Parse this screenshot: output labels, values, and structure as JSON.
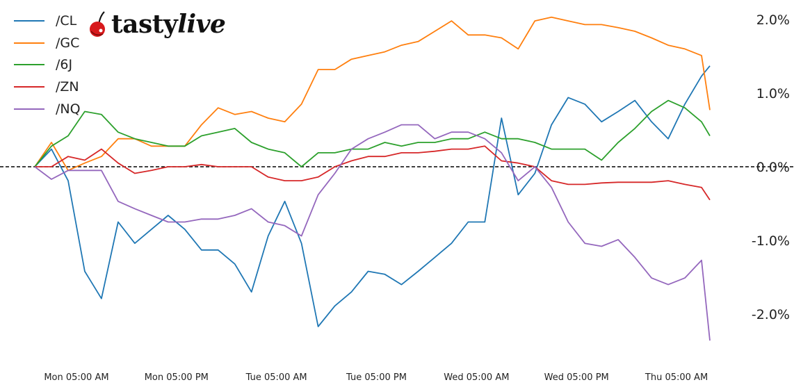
{
  "logo": {
    "text_main": "tasty",
    "text_italic": "live",
    "icon": "cherry-icon"
  },
  "chart_data": {
    "type": "line",
    "title": "",
    "xlabel": "",
    "ylabel": "",
    "x": [
      "Mon 00:00",
      "Mon 02:00",
      "Mon 04:00",
      "Mon 06:00",
      "Mon 08:00",
      "Mon 10:00",
      "Mon 12:00",
      "Mon 14:00",
      "Mon 16:00",
      "Mon 18:00",
      "Mon 20:00",
      "Mon 22:00",
      "Tue 00:00",
      "Tue 02:00",
      "Tue 04:00",
      "Tue 06:00",
      "Tue 08:00",
      "Tue 10:00",
      "Tue 12:00",
      "Tue 14:00",
      "Tue 16:00",
      "Tue 18:00",
      "Tue 20:00",
      "Tue 22:00",
      "Wed 00:00",
      "Wed 02:00",
      "Wed 04:00",
      "Wed 06:00",
      "Wed 08:00",
      "Wed 10:00",
      "Wed 12:00",
      "Wed 14:00",
      "Wed 16:00",
      "Wed 18:00",
      "Wed 20:00",
      "Wed 22:00",
      "Thu 00:00",
      "Thu 02:00",
      "Thu 04:00",
      "Thu 06:00",
      "Thu 08:00",
      "Thu 09:00"
    ],
    "x_range": [
      "Mon 00:00",
      "Thu 09:00"
    ],
    "x_ticks": [
      "Mon 05:00",
      "Mon 17:00",
      "Tue 05:00",
      "Tue 17:00",
      "Wed 05:00",
      "Wed 17:00",
      "Thu 05:00"
    ],
    "x_tick_labels": [
      "Mon 05:00 AM",
      "Mon 05:00 PM",
      "Tue 05:00 AM",
      "Tue 05:00 PM",
      "Wed 05:00 AM",
      "Wed 05:00 PM",
      "Thu 05:00 AM"
    ],
    "y_unit": "%",
    "y_ticks": [
      2.0,
      1.0,
      0.0,
      -1.0,
      -2.0
    ],
    "y_tick_labels": [
      "2.0%",
      "1.0%",
      "0.0%",
      "-1.0%",
      "-2.0%"
    ],
    "y_axis_side": "right",
    "ylim": [
      -2.6,
      2.25
    ],
    "reference_line": {
      "y": 0,
      "style": "dashed",
      "color": "#000000"
    },
    "grid": false,
    "legend_position": "top-left",
    "series": [
      {
        "name": "/CL",
        "color": "#1f77b4",
        "values": [
          0,
          0.24,
          -0.19,
          -1.42,
          -1.79,
          -0.75,
          -1.04,
          -0.85,
          -0.66,
          -0.85,
          -1.13,
          -1.13,
          -1.32,
          -1.7,
          -0.94,
          -0.47,
          -1.04,
          -2.17,
          -1.89,
          -1.7,
          -1.42,
          -1.46,
          -1.6,
          -1.42,
          -1.23,
          -1.04,
          -0.75,
          -0.75,
          0.66,
          -0.38,
          -0.09,
          0.57,
          0.94,
          0.85,
          0.61,
          0.75,
          0.9,
          0.61,
          0.38,
          0.85,
          1.23,
          1.37
        ]
      },
      {
        "name": "/GC",
        "color": "#ff7f0e",
        "values": [
          0,
          0.33,
          -0.05,
          0.05,
          0.14,
          0.38,
          0.38,
          0.28,
          0.28,
          0.28,
          0.57,
          0.8,
          0.71,
          0.75,
          0.66,
          0.61,
          0.85,
          1.32,
          1.32,
          1.46,
          1.51,
          1.56,
          1.65,
          1.7,
          1.84,
          1.98,
          1.79,
          1.79,
          1.75,
          1.6,
          1.98,
          2.03,
          1.98,
          1.93,
          1.93,
          1.89,
          1.84,
          1.75,
          1.65,
          1.6,
          1.51,
          0.77
        ]
      },
      {
        "name": "/6J",
        "color": "#2ca02c",
        "values": [
          0,
          0.28,
          0.42,
          0.75,
          0.71,
          0.47,
          0.38,
          0.33,
          0.28,
          0.28,
          0.42,
          0.47,
          0.52,
          0.33,
          0.24,
          0.19,
          0,
          0.19,
          0.19,
          0.24,
          0.24,
          0.33,
          0.28,
          0.33,
          0.33,
          0.38,
          0.38,
          0.47,
          0.38,
          0.38,
          0.33,
          0.24,
          0.24,
          0.24,
          0.09,
          0.33,
          0.52,
          0.75,
          0.9,
          0.8,
          0.61,
          0.42
        ]
      },
      {
        "name": "/ZN",
        "color": "#d62728",
        "values": [
          0,
          0,
          0.14,
          0.09,
          0.24,
          0.05,
          -0.09,
          -0.05,
          0,
          0,
          0.03,
          0,
          0,
          0,
          -0.14,
          -0.19,
          -0.19,
          -0.14,
          0,
          0.08,
          0.14,
          0.14,
          0.19,
          0.19,
          0.21,
          0.24,
          0.24,
          0.28,
          0.08,
          0.05,
          0,
          -0.19,
          -0.24,
          -0.24,
          -0.22,
          -0.21,
          -0.21,
          -0.21,
          -0.19,
          -0.24,
          -0.28,
          -0.45
        ]
      },
      {
        "name": "/NQ",
        "color": "#9467bd",
        "values": [
          0,
          -0.17,
          -0.05,
          -0.05,
          -0.05,
          -0.47,
          -0.57,
          -0.66,
          -0.75,
          -0.75,
          -0.71,
          -0.71,
          -0.66,
          -0.57,
          -0.75,
          -0.8,
          -0.94,
          -0.38,
          -0.09,
          0.24,
          0.38,
          0.47,
          0.57,
          0.57,
          0.38,
          0.47,
          0.47,
          0.38,
          0.19,
          -0.19,
          0,
          -0.28,
          -0.75,
          -1.04,
          -1.08,
          -0.99,
          -1.23,
          -1.51,
          -1.6,
          -1.51,
          -1.27,
          -2.36
        ]
      }
    ]
  }
}
